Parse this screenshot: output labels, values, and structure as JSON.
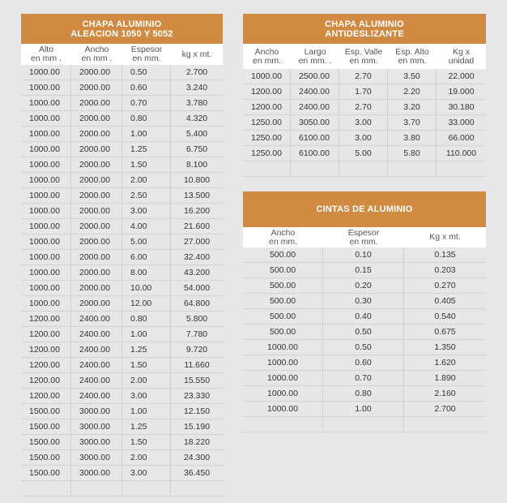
{
  "t1": {
    "title1": "CHAPA ALUMINIO",
    "title2": "ALEACION 1050 Y 5052",
    "cols": [
      [
        "Alto",
        "en mm ."
      ],
      [
        "Ancho",
        "en mm ."
      ],
      [
        "Espesor",
        "en mm."
      ],
      [
        "kg x mt.",
        ""
      ]
    ],
    "rows": [
      [
        "1000.00",
        "2000.00",
        "0.50",
        "2.700"
      ],
      [
        "1000.00",
        "2000.00",
        "0.60",
        "3.240"
      ],
      [
        "1000.00",
        "2000.00",
        "0.70",
        "3.780"
      ],
      [
        "1000.00",
        "2000.00",
        "0.80",
        "4.320"
      ],
      [
        "1000.00",
        "2000.00",
        "1.00",
        "5.400"
      ],
      [
        "1000.00",
        "2000.00",
        "1.25",
        "6.750"
      ],
      [
        "1000.00",
        "2000.00",
        "1.50",
        "8.100"
      ],
      [
        "1000.00",
        "2000.00",
        "2.00",
        "10.800"
      ],
      [
        "1000.00",
        "2000.00",
        "2.50",
        "13.500"
      ],
      [
        "1000.00",
        "2000.00",
        "3.00",
        "16.200"
      ],
      [
        "1000.00",
        "2000.00",
        "4.00",
        "21.600"
      ],
      [
        "1000.00",
        "2000.00",
        "5.00",
        "27.000"
      ],
      [
        "1000.00",
        "2000.00",
        "6.00",
        "32.400"
      ],
      [
        "1000.00",
        "2000.00",
        "8.00",
        "43.200"
      ],
      [
        "1000.00",
        "2000.00",
        "10.00",
        "54.000"
      ],
      [
        "1000.00",
        "2000.00",
        "12.00",
        "64.800"
      ],
      [
        "1200.00",
        "2400.00",
        "0.80",
        "5.800"
      ],
      [
        "1200.00",
        "2400.00",
        "1.00",
        "7.780"
      ],
      [
        "1200.00",
        "2400.00",
        "1.25",
        "9.720"
      ],
      [
        "1200.00",
        "2400.00",
        "1.50",
        "11.660"
      ],
      [
        "1200.00",
        "2400.00",
        "2.00",
        "15.550"
      ],
      [
        "1200.00",
        "2400.00",
        "3.00",
        "23.330"
      ],
      [
        "1500.00",
        "3000.00",
        "1.00",
        "12.150"
      ],
      [
        "1500.00",
        "3000.00",
        "1.25",
        "15.190"
      ],
      [
        "1500.00",
        "3000.00",
        "1.50",
        "18.220"
      ],
      [
        "1500.00",
        "3000.00",
        "2.00",
        "24.300"
      ],
      [
        "1500.00",
        "3000.00",
        "3.00",
        "36.450"
      ],
      [
        "",
        "",
        "",
        ""
      ]
    ]
  },
  "t2": {
    "title1": "CHAPA ALUMINIO",
    "title2": "ANTIDESLIZANTE",
    "cols": [
      [
        "Ancho",
        "en mm."
      ],
      [
        "Largo",
        "en mm. ."
      ],
      [
        "Esp. Valle",
        "en mm."
      ],
      [
        "Esp. Alto",
        "en mm."
      ],
      [
        "Kg x",
        "unidad"
      ]
    ],
    "rows": [
      [
        "1000.00",
        "2500.00",
        "2.70",
        "3.50",
        "22.000"
      ],
      [
        "1200.00",
        "2400.00",
        "1.70",
        "2.20",
        "19.000"
      ],
      [
        "1200.00",
        "2400.00",
        "2.70",
        "3.20",
        "30.180"
      ],
      [
        "1250.00",
        "3050.00",
        "3.00",
        "3.70",
        "33.000"
      ],
      [
        "1250.00",
        "6100.00",
        "3.00",
        "3.80",
        "66.000"
      ],
      [
        "1250.00",
        "6100.00",
        "5.00",
        "5.80",
        "110.000"
      ],
      [
        "",
        "",
        "",
        "",
        ""
      ]
    ]
  },
  "t3": {
    "title1": "CINTAS DE ALUMINIO",
    "cols": [
      [
        "Ancho",
        "en mm."
      ],
      [
        "Espesor",
        "en mm."
      ],
      [
        "Kg x mt.",
        ""
      ]
    ],
    "rows": [
      [
        "500.00",
        "0.10",
        "0.135"
      ],
      [
        "500.00",
        "0.15",
        "0.203"
      ],
      [
        "500.00",
        "0.20",
        "0.270"
      ],
      [
        "500.00",
        "0.30",
        "0.405"
      ],
      [
        "500.00",
        "0.40",
        "0.540"
      ],
      [
        "500.00",
        "0.50",
        "0.675"
      ],
      [
        "1000.00",
        "0.50",
        "1.350"
      ],
      [
        "1000.00",
        "0.60",
        "1.620"
      ],
      [
        "1000.00",
        "0.70",
        "1.890"
      ],
      [
        "1000.00",
        "0.80",
        "2.160"
      ],
      [
        "1000.00",
        "1.00",
        "2.700"
      ],
      [
        "",
        "",
        ""
      ]
    ]
  }
}
